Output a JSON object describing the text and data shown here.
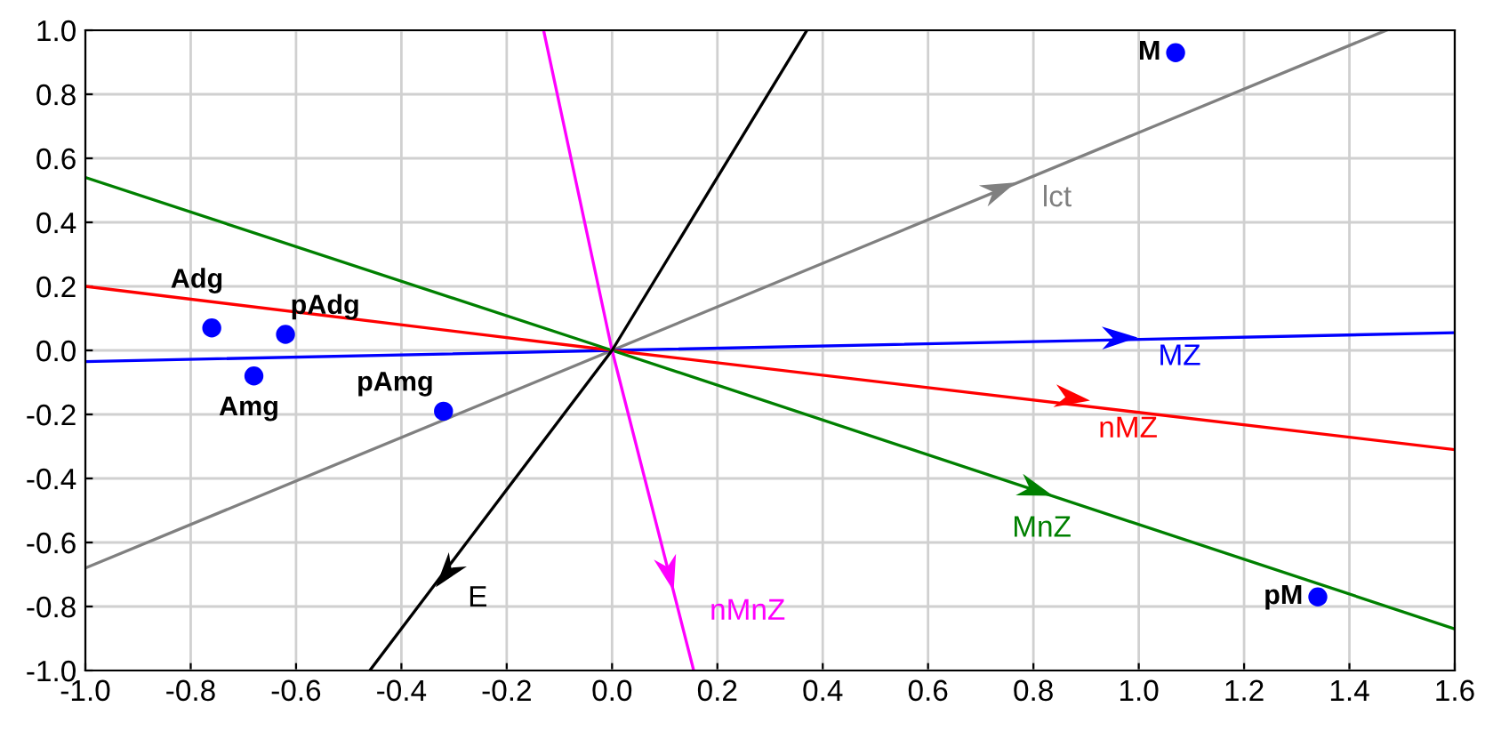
{
  "chart_data": {
    "type": "line",
    "xlim": [
      -1.0,
      1.6
    ],
    "ylim": [
      -1.0,
      1.0
    ],
    "xticks": [
      {
        "value": -1.0,
        "label": "-1.0"
      },
      {
        "value": -0.8,
        "label": "-0.8"
      },
      {
        "value": -0.6,
        "label": "-0.6"
      },
      {
        "value": -0.4,
        "label": "-0.4"
      },
      {
        "value": -0.2,
        "label": "-0.2"
      },
      {
        "value": 0.0,
        "label": "0.0"
      },
      {
        "value": 0.2,
        "label": "0.2"
      },
      {
        "value": 0.4,
        "label": "0.4"
      },
      {
        "value": 0.6,
        "label": "0.6"
      },
      {
        "value": 0.8,
        "label": "0.8"
      },
      {
        "value": 1.0,
        "label": "1.0"
      },
      {
        "value": 1.2,
        "label": "1.2"
      },
      {
        "value": 1.4,
        "label": "1.4"
      },
      {
        "value": 1.6,
        "label": "1.6"
      }
    ],
    "yticks": [
      {
        "value": -1.0,
        "label": "-1.0"
      },
      {
        "value": -0.8,
        "label": "-0.8"
      },
      {
        "value": -0.6,
        "label": "-0.6"
      },
      {
        "value": -0.4,
        "label": "-0.4"
      },
      {
        "value": -0.2,
        "label": "-0.2"
      },
      {
        "value": 0.0,
        "label": "0.0"
      },
      {
        "value": 0.2,
        "label": "0.2"
      },
      {
        "value": 0.4,
        "label": "0.4"
      },
      {
        "value": 0.6,
        "label": "0.6"
      },
      {
        "value": 0.8,
        "label": "0.8"
      },
      {
        "value": 1.0,
        "label": "1.0"
      }
    ],
    "grid": true,
    "legend": false,
    "series": [
      {
        "color": "#808080",
        "x": [
          -1.0,
          0.0,
          1.47
        ],
        "values": [
          -0.68,
          0.0,
          1.0
        ]
      },
      {
        "color": "#0000ff",
        "x": [
          -1.0,
          0.0,
          1.6
        ],
        "values": [
          -0.035,
          0.0,
          0.055
        ]
      },
      {
        "color": "#ff0000",
        "x": [
          -1.0,
          0.0,
          1.6
        ],
        "values": [
          0.2,
          0.0,
          -0.31
        ]
      },
      {
        "color": "#008000",
        "x": [
          -1.0,
          0.0,
          1.6
        ],
        "values": [
          0.54,
          0.0,
          -0.87
        ]
      },
      {
        "color": "#ff00ff",
        "x": [
          -0.13,
          0.0,
          0.155
        ],
        "values": [
          1.0,
          0.0,
          -1.0
        ]
      },
      {
        "color": "#000000",
        "x": [
          -0.46,
          0.0,
          0.37
        ],
        "values": [
          -1.0,
          0.0,
          1.0
        ]
      },
      {
        "type": "scatter",
        "name": "M",
        "color": "#0000ff",
        "marker": "circle",
        "x": [
          1.07
        ],
        "values": [
          0.93
        ]
      },
      {
        "type": "scatter",
        "name": "pM",
        "color": "#0000ff",
        "marker": "circle",
        "x": [
          1.34
        ],
        "values": [
          -0.77
        ]
      },
      {
        "type": "scatter",
        "name": "Adg",
        "color": "#0000ff",
        "marker": "circle",
        "x": [
          -0.76
        ],
        "values": [
          0.07
        ]
      },
      {
        "type": "scatter",
        "name": "pAdg",
        "color": "#0000ff",
        "marker": "circle",
        "x": [
          -0.62
        ],
        "values": [
          0.05
        ]
      },
      {
        "type": "scatter",
        "name": "Amg",
        "color": "#0000ff",
        "marker": "circle",
        "x": [
          -0.68
        ],
        "values": [
          -0.08
        ]
      },
      {
        "type": "scatter",
        "name": "pAmg",
        "color": "#0000ff",
        "marker": "circle",
        "x": [
          -0.32
        ],
        "values": [
          -0.19
        ]
      }
    ],
    "annotations": [
      {
        "text": "lct",
        "x": 0.76,
        "y": 0.52
      },
      {
        "text": "MZ",
        "x": 0.99,
        "y": 0.04
      },
      {
        "text": "nMZ",
        "x": 0.9,
        "y": -0.155
      },
      {
        "text": "MnZ",
        "x": 0.83,
        "y": -0.45
      },
      {
        "text": "nMnZ",
        "x": 0.115,
        "y": -0.74
      },
      {
        "text": "E",
        "x": -0.33,
        "y": -0.73
      }
    ]
  }
}
